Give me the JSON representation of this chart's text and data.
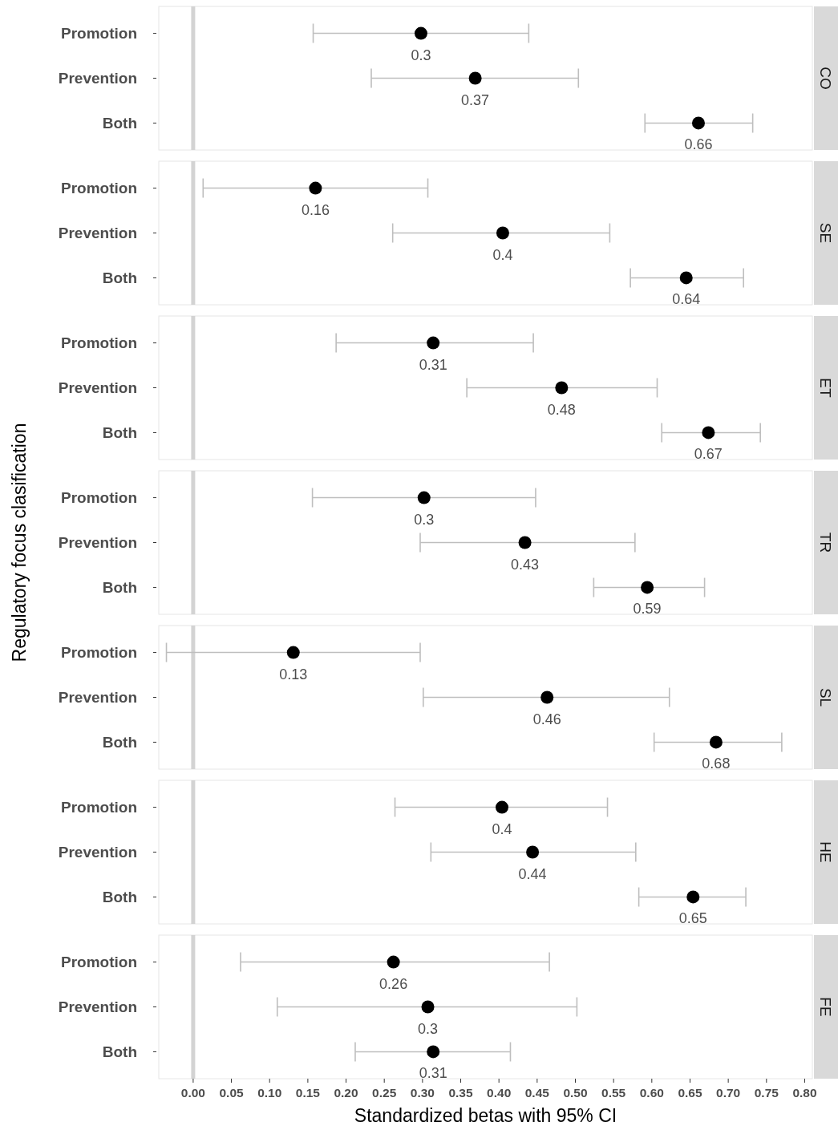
{
  "chart_data": [
    {
      "type": "scatter",
      "orientation": "horizontal",
      "title": "CO",
      "categories": [
        "Promotion",
        "Prevention",
        "Both"
      ],
      "values": [
        0.298,
        0.369,
        0.661
      ],
      "errors": [
        [
          0.157,
          0.439
        ],
        [
          0.233,
          0.504
        ],
        [
          0.591,
          0.732
        ]
      ],
      "value_labels": [
        "0.3",
        "0.37",
        "0.66"
      ],
      "color": "#000000",
      "marker": "circle",
      "xlim": [
        -0.045,
        0.81
      ],
      "tick_labels": "y",
      "grid": false,
      "ref_lines": [
        {
          "axis": "x",
          "value": 0,
          "color": "#d3d3d3"
        }
      ]
    },
    {
      "type": "scatter",
      "orientation": "horizontal",
      "title": "SE",
      "categories": [
        "Promotion",
        "Prevention",
        "Both"
      ],
      "values": [
        0.16,
        0.405,
        0.645
      ],
      "errors": [
        [
          0.013,
          0.307
        ],
        [
          0.261,
          0.545
        ],
        [
          0.572,
          0.72
        ]
      ],
      "value_labels": [
        "0.16",
        "0.4",
        "0.64"
      ],
      "color": "#000000",
      "marker": "circle",
      "xlim": [
        -0.045,
        0.81
      ],
      "tick_labels": "y",
      "grid": false,
      "ref_lines": [
        {
          "axis": "x",
          "value": 0,
          "color": "#d3d3d3"
        }
      ]
    },
    {
      "type": "scatter",
      "orientation": "horizontal",
      "title": "ET",
      "categories": [
        "Promotion",
        "Prevention",
        "Both"
      ],
      "values": [
        0.314,
        0.482,
        0.674
      ],
      "errors": [
        [
          0.187,
          0.445
        ],
        [
          0.358,
          0.607
        ],
        [
          0.613,
          0.742
        ]
      ],
      "value_labels": [
        "0.31",
        "0.48",
        "0.67"
      ],
      "color": "#000000",
      "marker": "circle",
      "xlim": [
        -0.045,
        0.81
      ],
      "tick_labels": "y",
      "grid": false,
      "ref_lines": [
        {
          "axis": "x",
          "value": 0,
          "color": "#d3d3d3"
        }
      ]
    },
    {
      "type": "scatter",
      "orientation": "horizontal",
      "title": "TR",
      "ylabel": "Regulatory focus clasification",
      "categories": [
        "Promotion",
        "Prevention",
        "Both"
      ],
      "values": [
        0.302,
        0.434,
        0.594
      ],
      "errors": [
        [
          0.156,
          0.448
        ],
        [
          0.297,
          0.578
        ],
        [
          0.524,
          0.669
        ]
      ],
      "value_labels": [
        "0.3",
        "0.43",
        "0.59"
      ],
      "color": "#000000",
      "marker": "circle",
      "xlim": [
        -0.045,
        0.81
      ],
      "tick_labels": "y",
      "grid": false,
      "ref_lines": [
        {
          "axis": "x",
          "value": 0,
          "color": "#d3d3d3"
        }
      ]
    },
    {
      "type": "scatter",
      "orientation": "horizontal",
      "title": "SL",
      "categories": [
        "Promotion",
        "Prevention",
        "Both"
      ],
      "values": [
        0.131,
        0.463,
        0.684
      ],
      "errors": [
        [
          -0.035,
          0.297
        ],
        [
          0.301,
          0.623
        ],
        [
          0.603,
          0.77
        ]
      ],
      "value_labels": [
        "0.13",
        "0.46",
        "0.68"
      ],
      "color": "#000000",
      "marker": "circle",
      "xlim": [
        -0.045,
        0.81
      ],
      "tick_labels": "y",
      "grid": false,
      "ref_lines": [
        {
          "axis": "x",
          "value": 0,
          "color": "#d3d3d3"
        }
      ]
    },
    {
      "type": "scatter",
      "orientation": "horizontal",
      "title": "HE",
      "categories": [
        "Promotion",
        "Prevention",
        "Both"
      ],
      "values": [
        0.404,
        0.444,
        0.654
      ],
      "errors": [
        [
          0.264,
          0.542
        ],
        [
          0.311,
          0.579
        ],
        [
          0.583,
          0.723
        ]
      ],
      "value_labels": [
        "0.4",
        "0.44",
        "0.65"
      ],
      "color": "#000000",
      "marker": "circle",
      "xlim": [
        -0.045,
        0.81
      ],
      "tick_labels": "y",
      "grid": false,
      "ref_lines": [
        {
          "axis": "x",
          "value": 0,
          "color": "#d3d3d3"
        }
      ]
    },
    {
      "type": "scatter",
      "orientation": "horizontal",
      "title": "FE",
      "xlabel": "Standardized betas with 95% CI",
      "categories": [
        "Promotion",
        "Prevention",
        "Both"
      ],
      "values": [
        0.262,
        0.307,
        0.314
      ],
      "errors": [
        [
          0.062,
          0.466
        ],
        [
          0.11,
          0.502
        ],
        [
          0.212,
          0.415
        ]
      ],
      "value_labels": [
        "0.26",
        "0.3",
        "0.31"
      ],
      "color": "#000000",
      "marker": "circle",
      "xlim": [
        -0.045,
        0.81
      ],
      "xticks": [
        {
          "value": 0,
          "label": "0.00"
        },
        0.05,
        {
          "value": 0.1,
          "label": "0.10"
        },
        0.15,
        {
          "value": 0.2,
          "label": "0.20"
        },
        0.25,
        {
          "value": 0.3,
          "label": "0.30"
        },
        0.35,
        {
          "value": 0.4,
          "label": "0.40"
        },
        0.45,
        {
          "value": 0.5,
          "label": "0.50"
        },
        0.55,
        {
          "value": 0.6,
          "label": "0.60"
        },
        0.65,
        {
          "value": 0.7,
          "label": "0.70"
        },
        0.75,
        {
          "value": 0.8,
          "label": "0.80"
        }
      ],
      "grid": false,
      "ref_lines": [
        {
          "axis": "x",
          "value": 0,
          "color": "#d3d3d3"
        }
      ]
    }
  ]
}
